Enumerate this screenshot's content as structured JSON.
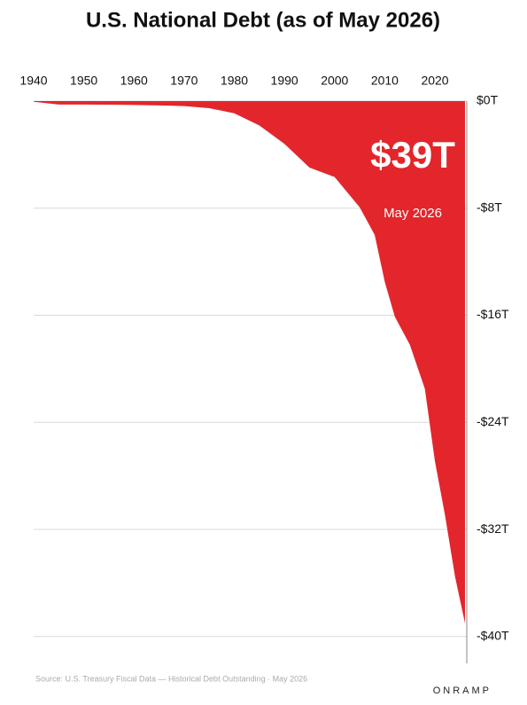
{
  "chart_data": {
    "type": "area",
    "title": "U.S. National Debt (as of May 2026)",
    "x": [
      1940,
      1945,
      1950,
      1955,
      1960,
      1965,
      1970,
      1975,
      1980,
      1985,
      1990,
      1995,
      2000,
      2005,
      2008,
      2010,
      2012,
      2015,
      2018,
      2020,
      2022,
      2024,
      2026
    ],
    "values": [
      -0.05,
      -0.26,
      -0.26,
      -0.27,
      -0.29,
      -0.32,
      -0.37,
      -0.53,
      -0.91,
      -1.82,
      -3.2,
      -4.97,
      -5.67,
      -7.93,
      -10.0,
      -13.5,
      -16.1,
      -18.2,
      -21.5,
      -26.9,
      -30.9,
      -35.5,
      -39.0
    ],
    "color": "#e3262b",
    "xlim": [
      1940,
      2026
    ],
    "xticks": [
      1940,
      1950,
      1960,
      1970,
      1980,
      1990,
      2000,
      2010,
      2020
    ],
    "ylim": [
      -42,
      0
    ],
    "yticks": [
      {
        "value": 0,
        "label": "$0T"
      },
      {
        "value": -8,
        "label": "-$8T"
      },
      {
        "value": -16,
        "label": "-$16T"
      },
      {
        "value": -24,
        "label": "-$24T"
      },
      {
        "value": -32,
        "label": "-$32T"
      },
      {
        "value": -40,
        "label": "-$40T"
      }
    ],
    "grid": true,
    "annotation": "$39T",
    "annotation_sub": "May 2026",
    "source": "Source: U.S. Treasury Fiscal Data — Historical Debt Outstanding · May 2026",
    "brand": "ONRAMP"
  }
}
